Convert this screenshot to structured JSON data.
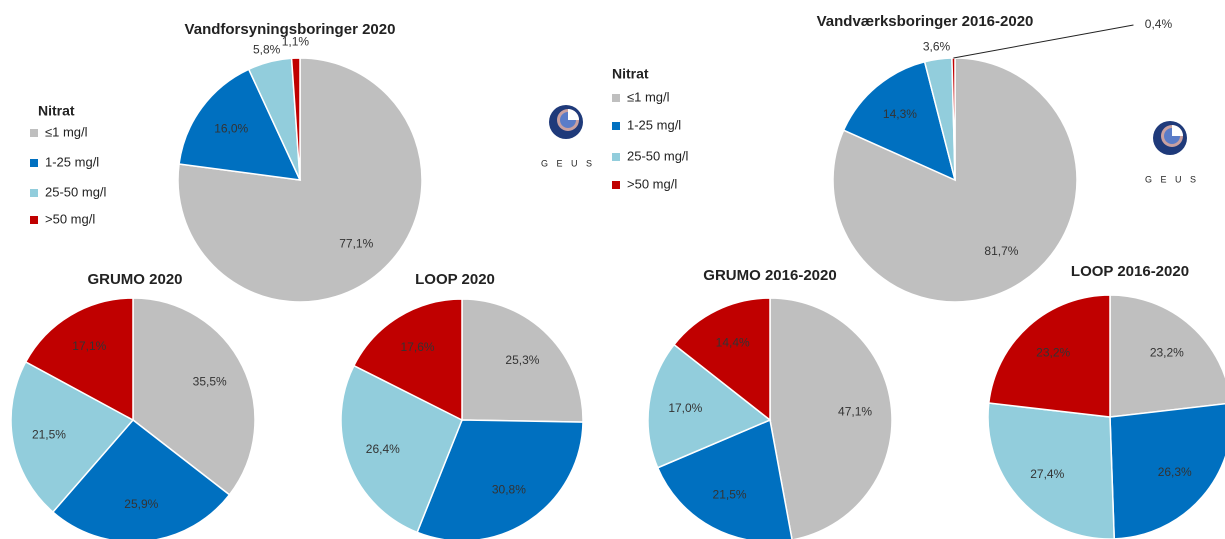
{
  "chart_data": [
    {
      "type": "pie",
      "title": "Vandforsyningsboringer 2020",
      "values": [
        77.1,
        16.0,
        5.8,
        1.1
      ],
      "value_labels": [
        "77,1%",
        "16,0%",
        "5,8%",
        "1,1%"
      ],
      "colors": [
        "#bfbfbf",
        "#0070c0",
        "#92cddc",
        "#c00000"
      ]
    },
    {
      "type": "pie",
      "title": "Vandværksboringer 2016-2020",
      "values": [
        81.7,
        14.3,
        3.6,
        0.4
      ],
      "value_labels": [
        "81,7%",
        "14,3%",
        "3,6%",
        "0,4%"
      ],
      "colors": [
        "#bfbfbf",
        "#0070c0",
        "#92cddc",
        "#c00000"
      ]
    },
    {
      "type": "pie",
      "title": "GRUMO 2020",
      "values": [
        35.5,
        25.9,
        21.5,
        17.1
      ],
      "value_labels": [
        "35,5%",
        "25,9%",
        "21,5%",
        "17,1%"
      ],
      "colors": [
        "#bfbfbf",
        "#0070c0",
        "#92cddc",
        "#c00000"
      ]
    },
    {
      "type": "pie",
      "title": "LOOP 2020",
      "values": [
        25.3,
        30.8,
        26.4,
        17.6
      ],
      "value_labels": [
        "25,3%",
        "30,8%",
        "26,4%",
        "17,6%"
      ],
      "colors": [
        "#bfbfbf",
        "#0070c0",
        "#92cddc",
        "#c00000"
      ]
    },
    {
      "type": "pie",
      "title": "GRUMO 2016-2020",
      "values": [
        47.1,
        21.5,
        17.0,
        14.4
      ],
      "value_labels": [
        "47,1%",
        "21,5%",
        "17,0%",
        "14,4%"
      ],
      "colors": [
        "#bfbfbf",
        "#0070c0",
        "#92cddc",
        "#c00000"
      ]
    },
    {
      "type": "pie",
      "title": "LOOP 2016-2020",
      "values": [
        23.2,
        26.3,
        27.4,
        23.2
      ],
      "value_labels": [
        "23,2%",
        "26,3%",
        "27,4%",
        "23,2%"
      ],
      "colors": [
        "#bfbfbf",
        "#0070c0",
        "#92cddc",
        "#c00000"
      ]
    }
  ],
  "legends": [
    {
      "title": "Nitrat",
      "categories": [
        "≤1 mg/l",
        "1-25 mg/l",
        "25-50 mg/l",
        ">50 mg/l"
      ],
      "colors": [
        "#bfbfbf",
        "#0070c0",
        "#92cddc",
        "#c00000"
      ]
    },
    {
      "title": "Nitrat",
      "categories": [
        "≤1 mg/l",
        "1-25 mg/l",
        "25-50 mg/l",
        ">50 mg/l"
      ],
      "colors": [
        "#bfbfbf",
        "#0070c0",
        "#92cddc",
        "#c00000"
      ]
    }
  ],
  "logos": [
    "G E U S",
    "G E U S"
  ]
}
